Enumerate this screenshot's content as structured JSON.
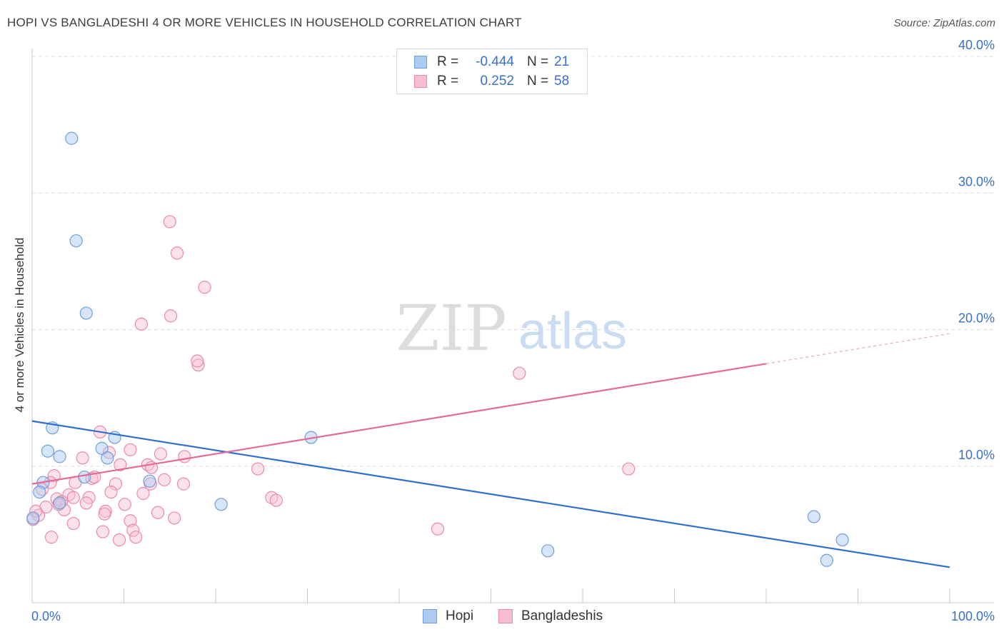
{
  "title": "HOPI VS BANGLADESHI 4 OR MORE VEHICLES IN HOUSEHOLD CORRELATION CHART",
  "source": "Source: ZipAtlas.com",
  "watermark": {
    "zip": "ZIP",
    "atlas": "atlas"
  },
  "legend": {
    "hopi": {
      "r_label": "R =",
      "r_value": "-0.444",
      "n_label": "N =",
      "n_value": "21"
    },
    "bangladeshi": {
      "r_label": "R =",
      "r_value": "0.252",
      "n_label": "N =",
      "n_value": "58"
    }
  },
  "bottom_legend": {
    "hopi": "Hopi",
    "bangladeshi": "Bangladeshis"
  },
  "colors": {
    "hopi_fill": "#aecbf2",
    "hopi_stroke": "#6f9fd8",
    "hopi_line": "#2f6fcf",
    "bang_fill": "#f6bfd0",
    "bang_stroke": "#e98aa9",
    "bang_line": "#e56a97",
    "tick_text": "#3a6fc9",
    "grid": "#dddddd"
  },
  "chart_data": {
    "type": "scatter",
    "xlabel": "",
    "ylabel": "4 or more Vehicles in Household",
    "xlim": [
      0,
      100
    ],
    "ylim": [
      0,
      40
    ],
    "x_tick_labels": [
      "0.0%",
      "100.0%"
    ],
    "y_ticks": [
      10,
      20,
      30,
      40
    ],
    "y_tick_labels": [
      "10.0%",
      "20.0%",
      "30.0%",
      "40.0%"
    ],
    "series": [
      {
        "name": "Hopi",
        "points": [
          [
            4.3,
            34.0
          ],
          [
            4.8,
            26.5
          ],
          [
            5.9,
            21.2
          ],
          [
            2.2,
            12.8
          ],
          [
            1.7,
            11.1
          ],
          [
            3.0,
            10.7
          ],
          [
            7.6,
            11.3
          ],
          [
            9.0,
            12.1
          ],
          [
            8.2,
            10.6
          ],
          [
            5.7,
            9.2
          ],
          [
            1.2,
            8.8
          ],
          [
            0.8,
            8.1
          ],
          [
            3.0,
            7.3
          ],
          [
            12.8,
            8.9
          ],
          [
            20.6,
            7.2
          ],
          [
            0.1,
            6.2
          ],
          [
            30.4,
            12.1
          ],
          [
            56.2,
            3.8
          ],
          [
            85.2,
            6.3
          ],
          [
            86.6,
            3.1
          ],
          [
            88.3,
            4.6
          ]
        ],
        "trend": {
          "x0": 0,
          "y0": 13.3,
          "x1": 100,
          "y1": 2.6
        }
      },
      {
        "name": "Bangladeshis",
        "points": [
          [
            15.0,
            27.9
          ],
          [
            15.8,
            25.6
          ],
          [
            18.8,
            23.1
          ],
          [
            11.9,
            20.4
          ],
          [
            15.1,
            21.0
          ],
          [
            18.1,
            17.4
          ],
          [
            18.0,
            17.7
          ],
          [
            53.1,
            16.8
          ],
          [
            7.4,
            12.5
          ],
          [
            10.7,
            11.2
          ],
          [
            14.0,
            10.9
          ],
          [
            8.4,
            11.0
          ],
          [
            5.5,
            10.6
          ],
          [
            16.6,
            10.7
          ],
          [
            9.6,
            10.1
          ],
          [
            12.6,
            10.1
          ],
          [
            13.0,
            9.9
          ],
          [
            24.6,
            9.8
          ],
          [
            65.0,
            9.8
          ],
          [
            2.4,
            9.3
          ],
          [
            6.5,
            9.1
          ],
          [
            14.4,
            9.0
          ],
          [
            2.0,
            8.8
          ],
          [
            4.7,
            8.8
          ],
          [
            12.9,
            8.7
          ],
          [
            16.5,
            8.7
          ],
          [
            9.1,
            8.7
          ],
          [
            8.6,
            8.1
          ],
          [
            12.1,
            8.0
          ],
          [
            1.1,
            8.3
          ],
          [
            4.0,
            7.9
          ],
          [
            6.2,
            7.7
          ],
          [
            2.7,
            7.6
          ],
          [
            4.5,
            7.7
          ],
          [
            3.2,
            7.4
          ],
          [
            5.9,
            7.3
          ],
          [
            10.1,
            7.2
          ],
          [
            26.1,
            7.7
          ],
          [
            26.6,
            7.5
          ],
          [
            1.5,
            7.0
          ],
          [
            3.5,
            6.8
          ],
          [
            8.0,
            6.7
          ],
          [
            7.9,
            6.5
          ],
          [
            0.7,
            6.4
          ],
          [
            13.7,
            6.6
          ],
          [
            15.5,
            6.2
          ],
          [
            10.7,
            6.0
          ],
          [
            0.1,
            6.1
          ],
          [
            4.5,
            5.8
          ],
          [
            11.0,
            5.3
          ],
          [
            7.7,
            5.2
          ],
          [
            44.2,
            5.4
          ],
          [
            2.1,
            4.8
          ],
          [
            11.3,
            4.8
          ],
          [
            9.5,
            4.6
          ],
          [
            0.4,
            6.7
          ],
          [
            6.8,
            9.2
          ],
          [
            2.9,
            7.2
          ]
        ],
        "trend": {
          "x0": 0,
          "y0": 8.7,
          "x1": 80,
          "y1": 17.5,
          "dash_to_x": 100,
          "dash_to_y": 19.7
        }
      }
    ]
  }
}
